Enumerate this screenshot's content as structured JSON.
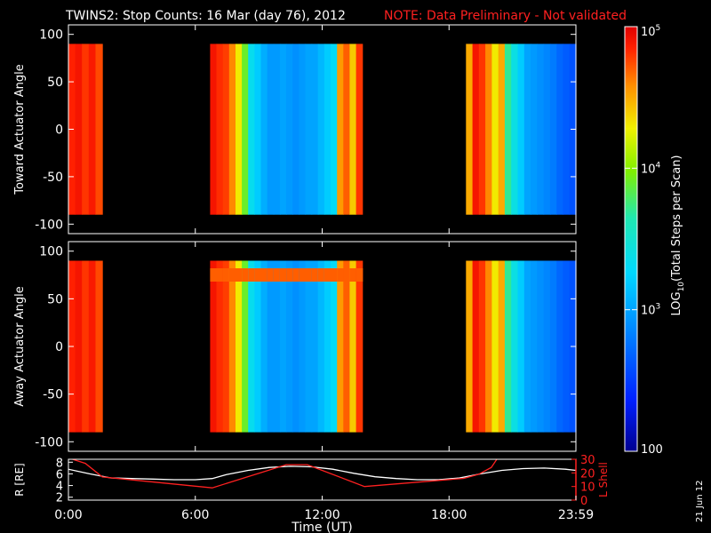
{
  "header": {
    "title": "TWINS2: Stop Counts: 16 Mar (day  76), 2012",
    "note": "NOTE: Data Preliminary - Not validated"
  },
  "date_stamp": "21 Jun 12",
  "colors": {
    "background": "#000000",
    "axis": "#ffffff",
    "note": "#ff2020",
    "r_line": "#ffffff",
    "lshell_line": "#ff2020"
  },
  "chart_data": [
    {
      "type": "heatmap",
      "panel": "top",
      "ylabel": "Toward Actuator Angle",
      "xlim": [
        0,
        24
      ],
      "ylim": [
        -110,
        110
      ],
      "y_ticks": [
        "100",
        "50",
        "0",
        "-50",
        "-100"
      ],
      "y_range": [
        -90,
        90
      ],
      "data_intervals_hours": [
        [
          0.0,
          1.6
        ],
        [
          6.7,
          13.9
        ],
        [
          18.8,
          24.0
        ]
      ],
      "column_log10_values": [
        4.85,
        4.9,
        4.8,
        4.88,
        4.75,
        4.9,
        4.82,
        4.78,
        4.6,
        4.3,
        3.9,
        3.35,
        3.2,
        3.05,
        2.95,
        2.95,
        3.0,
        2.95,
        2.9,
        2.95,
        3.0,
        3.0,
        3.1,
        3.2,
        3.3,
        4.55,
        4.7,
        4.4,
        4.8,
        4.5,
        4.9,
        4.8,
        4.6,
        4.3,
        4.5,
        3.7,
        3.4,
        3.2,
        3.0,
        2.95,
        2.9,
        2.85,
        2.8,
        2.7,
        2.65,
        2.6
      ]
    },
    {
      "type": "heatmap",
      "panel": "middle",
      "ylabel": "Away Actuator Angle",
      "xlim": [
        0,
        24
      ],
      "ylim": [
        -110,
        110
      ],
      "y_ticks": [
        "100",
        "50",
        "0",
        "-50",
        "-100"
      ],
      "y_range": [
        -90,
        90
      ],
      "data_intervals_hours": [
        [
          0.0,
          1.6
        ],
        [
          6.7,
          13.9
        ],
        [
          18.8,
          24.0
        ]
      ],
      "column_log10_values": [
        4.85,
        4.9,
        4.8,
        4.88,
        4.75,
        4.9,
        4.82,
        4.78,
        4.6,
        4.3,
        3.9,
        3.35,
        3.2,
        3.05,
        2.95,
        2.95,
        3.0,
        2.95,
        2.9,
        2.95,
        3.0,
        3.0,
        3.1,
        3.2,
        3.3,
        4.55,
        4.7,
        4.4,
        4.8,
        4.5,
        4.9,
        4.8,
        4.6,
        4.3,
        4.5,
        3.7,
        3.4,
        3.2,
        3.0,
        2.95,
        2.9,
        2.85,
        2.8,
        2.7,
        2.65,
        2.6
      ],
      "band_near_90_log10": 4.7
    },
    {
      "type": "line",
      "panel": "bottom",
      "ylabel": "R [RE]",
      "y2label": "L Shell",
      "xlabel": "Time (UT)",
      "xlim": [
        0,
        24
      ],
      "ylim": [
        1.5,
        8.5
      ],
      "y2lim": [
        0,
        30
      ],
      "x_ticks": [
        "0:00",
        "6:00",
        "12:00",
        "18:00",
        "23:59"
      ],
      "x_tick_hours": [
        0,
        6,
        12,
        18,
        24
      ],
      "y_ticks": [
        "8",
        "6",
        "4",
        "2"
      ],
      "y2_ticks": [
        "30",
        "20",
        "10",
        "0"
      ],
      "series": [
        {
          "axis": "left",
          "x": [
            0,
            1,
            2,
            3,
            4,
            5,
            6,
            6.8,
            7.5,
            8.5,
            9.5,
            10.5,
            11.5,
            12.5,
            13.5,
            14.5,
            15.5,
            16.5,
            17.5,
            18.5,
            19.5,
            20.5,
            21.5,
            22.5,
            23.5,
            24
          ],
          "values": [
            6.8,
            6.0,
            5.3,
            5.2,
            5.1,
            5.0,
            5.0,
            5.2,
            5.9,
            6.6,
            7.1,
            7.3,
            7.2,
            6.8,
            6.1,
            5.5,
            5.2,
            5.0,
            5.0,
            5.3,
            6.0,
            6.6,
            6.9,
            7.0,
            6.8,
            6.6
          ]
        },
        {
          "axis": "right",
          "x": [
            0,
            0.8,
            1.6,
            6.8,
            10.3,
            11.3,
            14.0,
            18.7,
            19.4,
            20.0,
            20.3
          ],
          "values": [
            31,
            27,
            17,
            9,
            26,
            26,
            10,
            16,
            19,
            24,
            31
          ]
        }
      ]
    },
    {
      "type": "colorbar",
      "label": "LOG10(Total Steps per Scan)",
      "label_prefix": "LOG",
      "label_subscript": "10",
      "label_suffix": "(Total Steps per Scan)",
      "range_log10": [
        2,
        5
      ],
      "ticks": [
        {
          "base": "10",
          "exp": "5",
          "log10": 5
        },
        {
          "base": "10",
          "exp": "4",
          "log10": 4
        },
        {
          "base": "10",
          "exp": "3",
          "log10": 3
        },
        {
          "base": "100",
          "exp": "",
          "log10": 2
        }
      ]
    }
  ]
}
